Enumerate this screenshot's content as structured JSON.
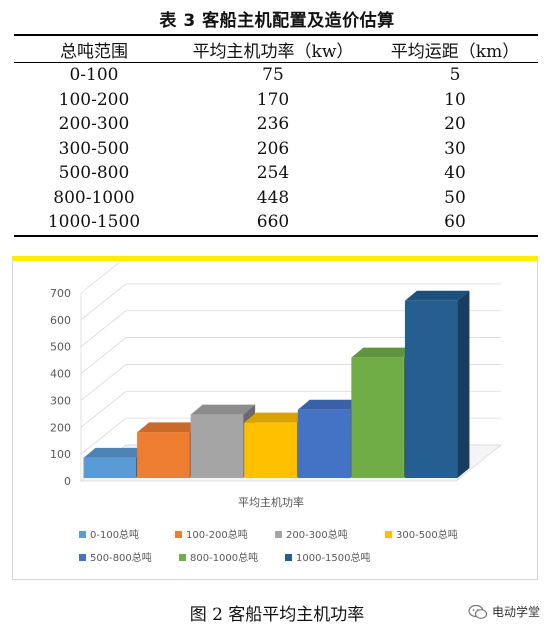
{
  "table": {
    "caption": "表 3 客船主机配置及造价估算",
    "headers": [
      "总吨范围",
      "平均主机功率（kw）",
      "平均运距（km）"
    ],
    "rows": [
      [
        "0-100",
        "75",
        "5"
      ],
      [
        "100-200",
        "170",
        "10"
      ],
      [
        "200-300",
        "236",
        "20"
      ],
      [
        "300-500",
        "206",
        "30"
      ],
      [
        "500-800",
        "254",
        "40"
      ],
      [
        "800-1000",
        "448",
        "50"
      ],
      [
        "1000-1500",
        "660",
        "60"
      ]
    ]
  },
  "chart_data": {
    "type": "bar",
    "title": "",
    "xlabel": "平均主机功率",
    "ylabel": "",
    "ylim": [
      0,
      700
    ],
    "yticks": [
      0,
      100,
      200,
      300,
      400,
      500,
      600,
      700
    ],
    "grid": true,
    "legend_position": "bottom",
    "series": [
      {
        "name": "0-100总吨",
        "values": [
          75
        ],
        "color": "#5b9bd5"
      },
      {
        "name": "100-200总吨",
        "values": [
          170
        ],
        "color": "#ed7d31"
      },
      {
        "name": "200-300总吨",
        "values": [
          236
        ],
        "color": "#a5a5a5"
      },
      {
        "name": "300-500总吨",
        "values": [
          206
        ],
        "color": "#ffc000"
      },
      {
        "name": "500-800总吨",
        "values": [
          254
        ],
        "color": "#4472c4"
      },
      {
        "name": "800-1000总吨",
        "values": [
          448
        ],
        "color": "#70ad47"
      },
      {
        "name": "1000-1500总吨",
        "values": [
          660
        ],
        "color": "#255e91"
      }
    ]
  },
  "figure_caption": "图 2 客船平均主机功率",
  "watermark": "电动学堂"
}
